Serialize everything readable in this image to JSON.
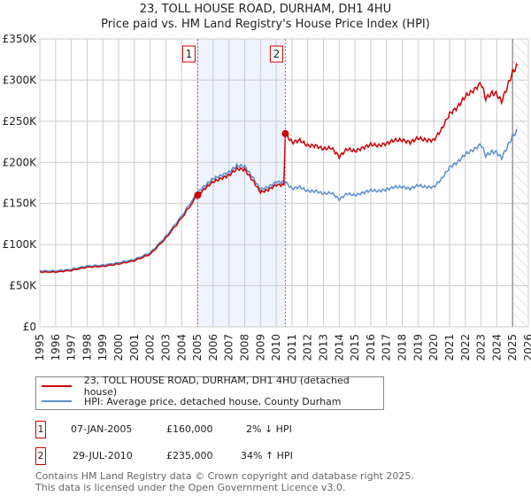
{
  "chart_data": {
    "type": "line",
    "title": "23, TOLL HOUSE ROAD, DURHAM, DH1 4HU",
    "subtitle": "Price paid vs. HM Land Registry's House Price Index (HPI)",
    "xlabel": "",
    "ylabel": "",
    "xlim": [
      1995,
      2026
    ],
    "ylim": [
      0,
      350000
    ],
    "y_ticks": [
      0,
      50000,
      100000,
      150000,
      200000,
      250000,
      300000,
      350000
    ],
    "y_tick_labels": [
      "£0",
      "£50K",
      "£100K",
      "£150K",
      "£200K",
      "£250K",
      "£300K",
      "£350K"
    ],
    "x_ticks": [
      "1995",
      "1996",
      "1997",
      "1998",
      "1999",
      "2000",
      "2001",
      "2002",
      "2003",
      "2004",
      "2005",
      "2006",
      "2007",
      "2008",
      "2009",
      "2010",
      "2011",
      "2012",
      "2013",
      "2014",
      "2015",
      "2016",
      "2017",
      "2018",
      "2019",
      "2020",
      "2021",
      "2022",
      "2023",
      "2024",
      "2025",
      "2026"
    ],
    "grid": true,
    "hpi_series": {
      "name": "HPI: Average price, detached house, County Durham",
      "color": "#5b8fd0",
      "x": [
        1995,
        1996,
        1997,
        1998,
        1999,
        2000,
        2001,
        2002,
        2003,
        2004,
        2005,
        2005.5,
        2006,
        2006.5,
        2007,
        2007.5,
        2008,
        2008.5,
        2009,
        2009.5,
        2010,
        2010.58,
        2011,
        2011.5,
        2012,
        2012.5,
        2013,
        2013.5,
        2014,
        2014.5,
        2015,
        2015.5,
        2016,
        2016.5,
        2017,
        2017.5,
        2018,
        2018.5,
        2019,
        2019.5,
        2020,
        2020.5,
        2021,
        2021.5,
        2022,
        2022.5,
        2023,
        2023.3,
        2023.7,
        2024,
        2024.3,
        2024.7,
        2025,
        2025.3
      ],
      "y": [
        68000,
        68000,
        70000,
        74000,
        75000,
        78000,
        82000,
        90000,
        110000,
        135000,
        163000,
        172000,
        180000,
        184000,
        188000,
        196000,
        195000,
        182000,
        167000,
        170000,
        176000,
        176000,
        168000,
        170000,
        165000,
        165000,
        162000,
        163000,
        155000,
        162000,
        160000,
        163000,
        166000,
        165000,
        167000,
        170000,
        170000,
        168000,
        172000,
        170000,
        170000,
        180000,
        194000,
        200000,
        210000,
        215000,
        222000,
        208000,
        213000,
        212000,
        205000,
        220000,
        232000,
        238000
      ]
    },
    "property_series": {
      "name": "23, TOLL HOUSE ROAD, DURHAM, DH1 4HU (detached house)",
      "color": "#cc0000"
    },
    "sales": [
      {
        "id": "1",
        "x": 2005.02,
        "price": 160000
      },
      {
        "id": "2",
        "x": 2010.58,
        "price": 235000
      }
    ],
    "shaded_range": [
      2005.02,
      2010.58
    ],
    "hatched_from": 2025.0
  },
  "legend": {
    "property": "23, TOLL HOUSE ROAD, DURHAM, DH1 4HU (detached house)",
    "hpi": "HPI: Average price, detached house, County Durham"
  },
  "table": [
    {
      "id": "1",
      "date": "07-JAN-2005",
      "price": "£160,000",
      "delta": "2% ↓ HPI"
    },
    {
      "id": "2",
      "date": "29-JUL-2010",
      "price": "£235,000",
      "delta": "34% ↑ HPI"
    }
  ],
  "footer": {
    "line1": "Contains HM Land Registry data © Crown copyright and database right 2025.",
    "line2": "This data is licensed under the Open Government Licence v3.0."
  }
}
